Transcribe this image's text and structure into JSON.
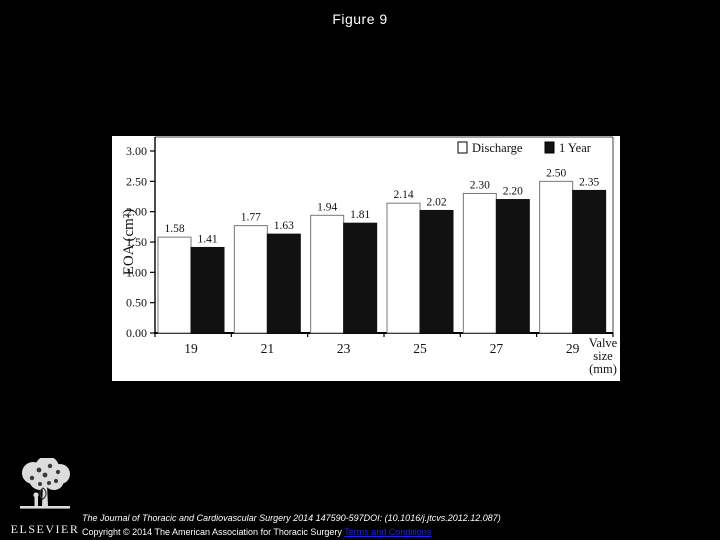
{
  "page": {
    "title": "Figure 9",
    "background": "#000000",
    "panel_background": "#ffffff"
  },
  "chart_data": {
    "type": "bar",
    "title": "",
    "categories": [
      "19",
      "21",
      "23",
      "25",
      "27",
      "29"
    ],
    "series": [
      {
        "name": "Discharge",
        "fill": "#ffffff",
        "values": [
          1.58,
          1.77,
          1.94,
          2.14,
          2.3,
          2.5
        ]
      },
      {
        "name": "1 Year",
        "fill": "#111111",
        "values": [
          1.41,
          1.63,
          1.81,
          2.02,
          2.2,
          2.35
        ]
      }
    ],
    "value_labels": [
      [
        "1.58",
        "1.77",
        "1.94",
        "2.14",
        "2.30",
        "2.50"
      ],
      [
        "1.41",
        "1.63",
        "1.81",
        "2.02",
        "2.20",
        "2.35"
      ]
    ],
    "ylabel": "EOA (cm²)",
    "xlabel": "Valve size (mm)",
    "xlabel_lines": "Valve\nsize\n(mm)",
    "ylim": [
      0,
      3.0
    ],
    "ytick_step": 0.5,
    "yticks": [
      "0.00",
      "0.50",
      "1.00",
      "1.50",
      "2.00",
      "2.50",
      "3.00"
    ],
    "legend_position": "top-right",
    "grid": false,
    "bar_outline_color": "#777777"
  },
  "footer": {
    "logo_word": "ELSEVIER",
    "citation_line1": "The Journal of Thoracic and Cardiovascular Surgery 2014 147590-597DOI: (10.1016/j.jtcvs.2012.12.087)",
    "copyright_text": "Copyright © 2014 The American Association for Thoracic Surgery ",
    "terms_link_label": "Terms and Conditions",
    "link_color": "#2323e8"
  }
}
